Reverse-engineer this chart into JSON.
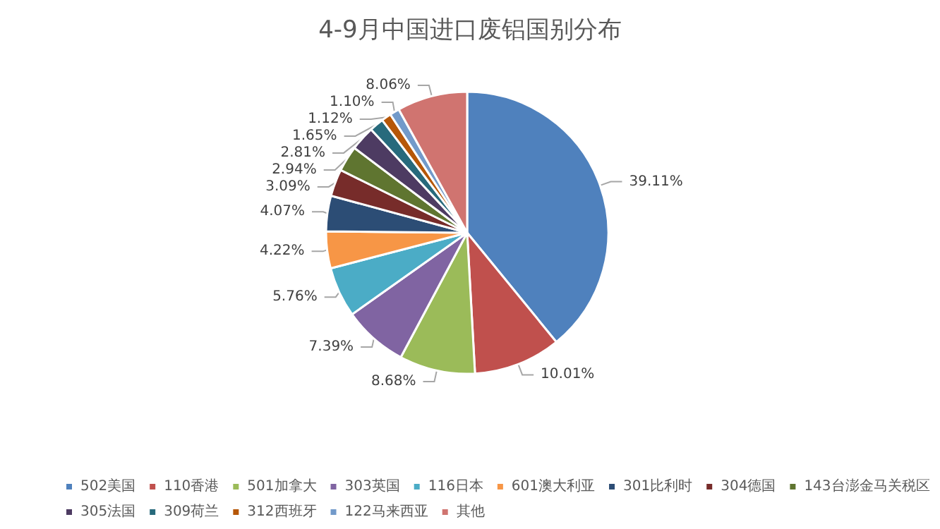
{
  "chart_data": {
    "type": "pie",
    "title": "4-9月中国进口废铝国别分布",
    "categories": [
      "502美国",
      "110香港",
      "501加拿大",
      "303英国",
      "116日本",
      "601澳大利亚",
      "301比利时",
      "304德国",
      "143台澎金马关税区",
      "305法国",
      "309荷兰",
      "312西班牙",
      "122马来西亚",
      "其他"
    ],
    "values": [
      39.11,
      10.01,
      8.68,
      7.39,
      5.76,
      4.22,
      4.07,
      3.09,
      2.94,
      2.81,
      1.65,
      1.12,
      1.1,
      8.06
    ],
    "value_labels": [
      "39.11%",
      "10.01%",
      "8.68%",
      "7.39%",
      "5.76%",
      "4.22%",
      "4.07%",
      "3.09%",
      "2.94%",
      "2.81%",
      "1.65%",
      "1.12%",
      "1.10%",
      "8.06%"
    ],
    "colors": [
      "#4f81bd",
      "#c0504d",
      "#9bbb59",
      "#8064a2",
      "#4bacc6",
      "#f79646",
      "#2c4d75",
      "#772c2a",
      "#5f7530",
      "#4d3b62",
      "#276a7c",
      "#b65708",
      "#729aca",
      "#d07470"
    ],
    "legend": "bottom"
  }
}
